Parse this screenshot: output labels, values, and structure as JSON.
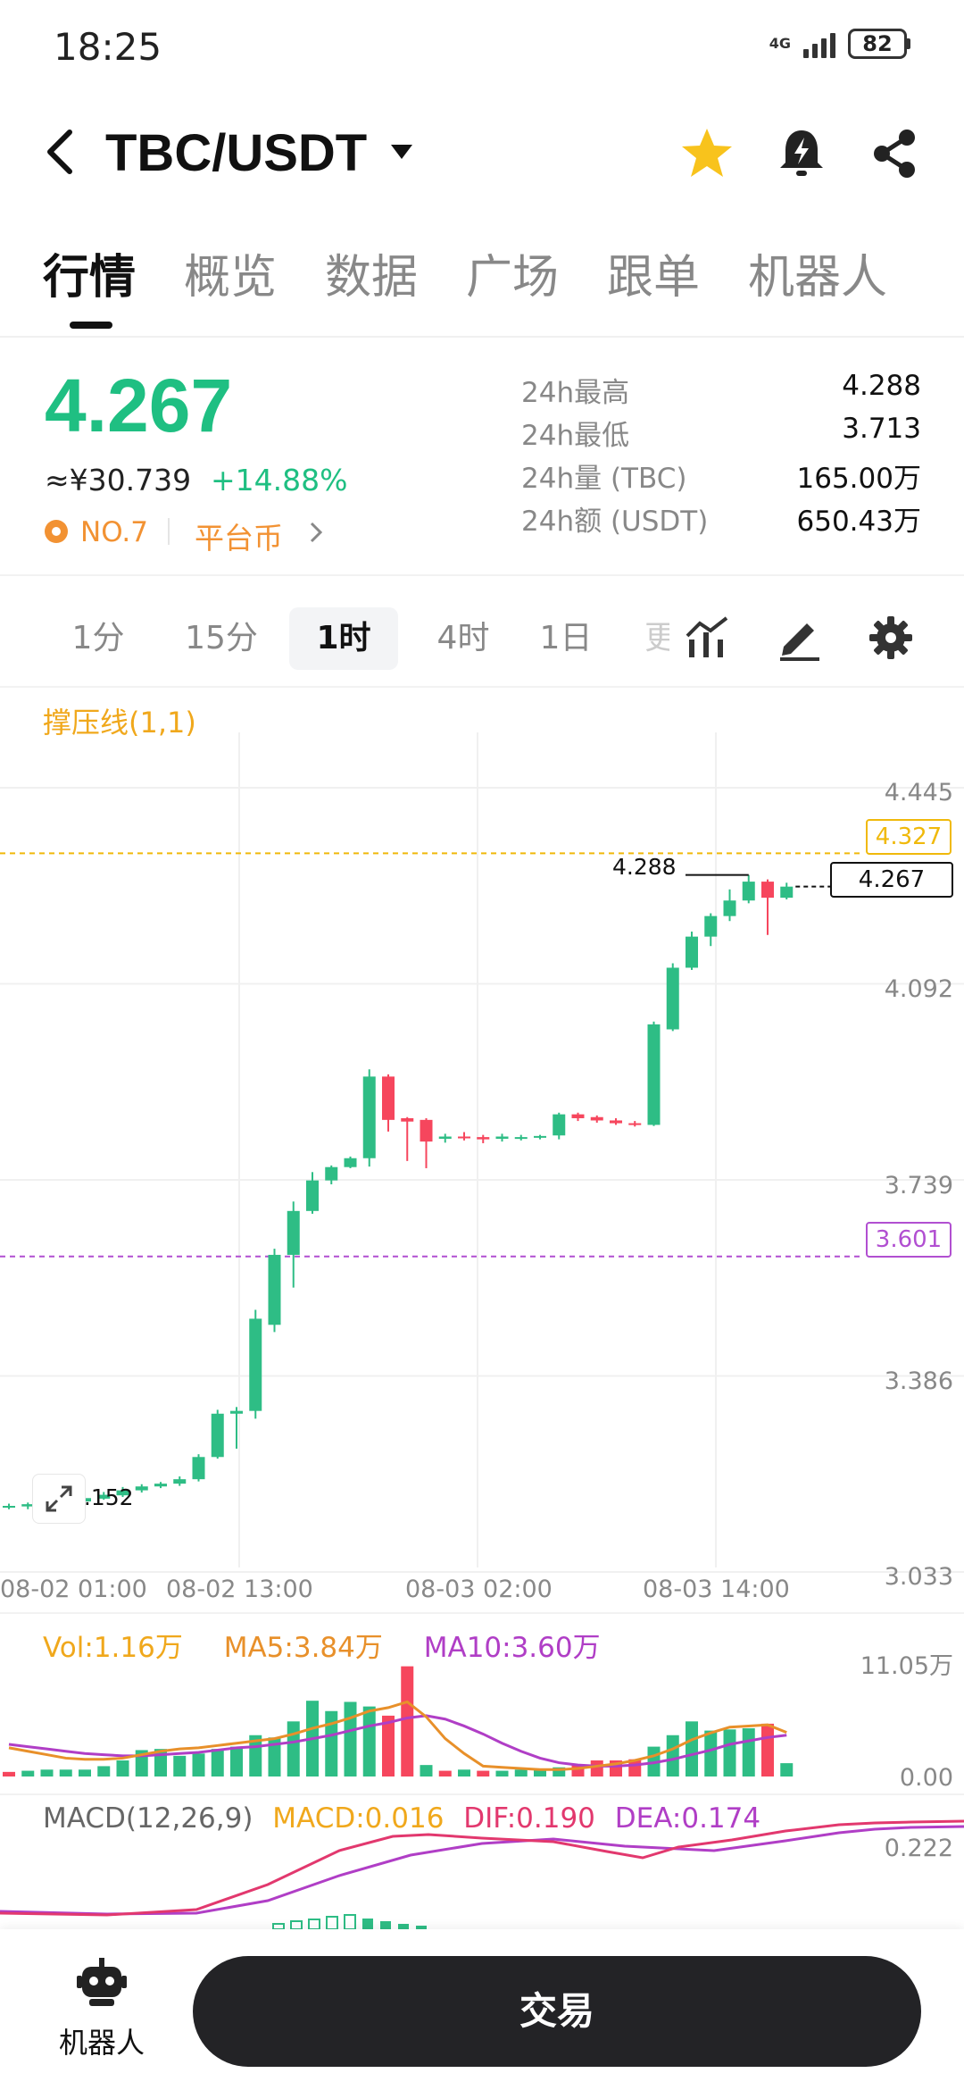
{
  "status_bar": {
    "time": "18:25",
    "network": "4G",
    "battery": "82"
  },
  "header": {
    "pair": "TBC/USDT"
  },
  "tabs": [
    "行情",
    "概览",
    "数据",
    "广场",
    "跟单",
    "机器人"
  ],
  "ticker": {
    "last_price": "4.267",
    "cny_price": "≈¥30.739",
    "change_pct": "+14.88%",
    "rank": "NO.7",
    "category": "平台币",
    "stats": [
      {
        "label": "24h最高",
        "value": "4.288"
      },
      {
        "label": "24h最低",
        "value": "3.713"
      },
      {
        "label": "24h量 (TBC)",
        "value": "165.00万"
      },
      {
        "label": "24h额 (USDT)",
        "value": "650.43万"
      }
    ]
  },
  "intervals": [
    "1分",
    "15分",
    "1时",
    "4时",
    "1日",
    "更"
  ],
  "active_interval": "1时",
  "chart": {
    "indicator_label": "撑压线(1,1)",
    "price_axis": [
      "4.445",
      "4.092",
      "3.739",
      "3.386",
      "3.033"
    ],
    "resistance": "4.327",
    "support": "3.601",
    "current_price_tag": "4.267",
    "high_marker": "4.288",
    "low_marker": "3.152",
    "time_axis": [
      "08-02 01:00",
      "08-02 13:00",
      "08-03 02:00",
      "08-03 14:00"
    ],
    "colors": {
      "up": "#2ebd85",
      "down": "#f6465d",
      "resistance": "#f0b90b",
      "support": "#b14fd1"
    }
  },
  "volume_panel": {
    "vol_label": "Vol:1.16万",
    "ma5_label": "MA5:3.84万",
    "ma10_label": "MA10:3.60万",
    "axis_top": "11.05万",
    "axis_bottom": "0.00",
    "colors": {
      "vol": "#f0a81c",
      "ma5": "#e8902a",
      "ma10": "#b03ec6"
    }
  },
  "macd_panel": {
    "title": "MACD(12,26,9)",
    "macd_label": "MACD:0.016",
    "dif_label": "DIF:0.190",
    "dea_label": "DEA:0.174",
    "axis_top": "0.222"
  },
  "bottom": {
    "robot_label": "机器人",
    "trade_label": "交易"
  },
  "chart_data": {
    "type": "candlestick",
    "interval": "1h",
    "y_axis_ticks": [
      4.445,
      4.092,
      3.739,
      3.386,
      3.033
    ],
    "x_axis_ticks": [
      "08-02 01:00",
      "08-02 13:00",
      "08-03 02:00",
      "08-03 14:00"
    ],
    "candles": [
      {
        "o": 3.15,
        "h": 3.156,
        "l": 3.146,
        "c": 3.152
      },
      {
        "o": 3.151,
        "h": 3.158,
        "l": 3.146,
        "c": 3.155
      },
      {
        "o": 3.154,
        "h": 3.16,
        "l": 3.15,
        "c": 3.157
      },
      {
        "o": 3.157,
        "h": 3.165,
        "l": 3.153,
        "c": 3.161
      },
      {
        "o": 3.16,
        "h": 3.17,
        "l": 3.157,
        "c": 3.166
      },
      {
        "o": 3.165,
        "h": 3.177,
        "l": 3.163,
        "c": 3.172
      },
      {
        "o": 3.171,
        "h": 3.186,
        "l": 3.168,
        "c": 3.18
      },
      {
        "o": 3.18,
        "h": 3.191,
        "l": 3.176,
        "c": 3.187
      },
      {
        "o": 3.187,
        "h": 3.195,
        "l": 3.184,
        "c": 3.192
      },
      {
        "o": 3.192,
        "h": 3.205,
        "l": 3.188,
        "c": 3.2
      },
      {
        "o": 3.2,
        "h": 3.245,
        "l": 3.196,
        "c": 3.24
      },
      {
        "o": 3.24,
        "h": 3.325,
        "l": 3.237,
        "c": 3.318
      },
      {
        "o": 3.318,
        "h": 3.33,
        "l": 3.255,
        "c": 3.323
      },
      {
        "o": 3.323,
        "h": 3.505,
        "l": 3.309,
        "c": 3.489
      },
      {
        "o": 3.478,
        "h": 3.615,
        "l": 3.465,
        "c": 3.604
      },
      {
        "o": 3.604,
        "h": 3.7,
        "l": 3.545,
        "c": 3.683
      },
      {
        "o": 3.683,
        "h": 3.753,
        "l": 3.678,
        "c": 3.738
      },
      {
        "o": 3.738,
        "h": 3.765,
        "l": 3.731,
        "c": 3.762
      },
      {
        "o": 3.762,
        "h": 3.781,
        "l": 3.76,
        "c": 3.778
      },
      {
        "o": 3.778,
        "h": 3.938,
        "l": 3.763,
        "c": 3.925
      },
      {
        "o": 3.925,
        "h": 3.929,
        "l": 3.826,
        "c": 3.847
      },
      {
        "o": 3.85,
        "h": 3.852,
        "l": 3.773,
        "c": 3.844
      },
      {
        "o": 3.847,
        "h": 3.85,
        "l": 3.76,
        "c": 3.808
      },
      {
        "o": 3.813,
        "h": 3.822,
        "l": 3.806,
        "c": 3.817
      },
      {
        "o": 3.817,
        "h": 3.825,
        "l": 3.81,
        "c": 3.815
      },
      {
        "o": 3.816,
        "h": 3.82,
        "l": 3.805,
        "c": 3.812
      },
      {
        "o": 3.813,
        "h": 3.822,
        "l": 3.808,
        "c": 3.817
      },
      {
        "o": 3.815,
        "h": 3.82,
        "l": 3.81,
        "c": 3.816
      },
      {
        "o": 3.816,
        "h": 3.82,
        "l": 3.812,
        "c": 3.818
      },
      {
        "o": 3.819,
        "h": 3.86,
        "l": 3.812,
        "c": 3.857
      },
      {
        "o": 3.857,
        "h": 3.86,
        "l": 3.845,
        "c": 3.85
      },
      {
        "o": 3.852,
        "h": 3.855,
        "l": 3.842,
        "c": 3.846
      },
      {
        "o": 3.846,
        "h": 3.85,
        "l": 3.838,
        "c": 3.841
      },
      {
        "o": 3.841,
        "h": 3.845,
        "l": 3.835,
        "c": 3.838
      },
      {
        "o": 3.838,
        "h": 4.024,
        "l": 3.836,
        "c": 4.019
      },
      {
        "o": 4.01,
        "h": 4.129,
        "l": 4.007,
        "c": 4.121
      },
      {
        "o": 4.121,
        "h": 4.186,
        "l": 4.117,
        "c": 4.177
      },
      {
        "o": 4.177,
        "h": 4.219,
        "l": 4.16,
        "c": 4.214
      },
      {
        "o": 4.214,
        "h": 4.262,
        "l": 4.205,
        "c": 4.242
      },
      {
        "o": 4.242,
        "h": 4.288,
        "l": 4.237,
        "c": 4.276
      },
      {
        "o": 4.276,
        "h": 4.28,
        "l": 4.18,
        "c": 4.247
      },
      {
        "o": 4.247,
        "h": 4.274,
        "l": 4.244,
        "c": 4.267
      }
    ],
    "volume": [
      0.4,
      0.5,
      0.6,
      0.6,
      0.6,
      0.9,
      1.4,
      2.3,
      2.4,
      1.8,
      2.0,
      2.4,
      2.6,
      3.6,
      3.4,
      4.8,
      6.6,
      5.7,
      6.5,
      6.1,
      5.3,
      9.6,
      1.0,
      0.5,
      0.6,
      0.5,
      0.5,
      0.6,
      0.6,
      0.8,
      1.0,
      1.4,
      1.4,
      1.5,
      2.6,
      3.6,
      4.8,
      4.0,
      4.1,
      4.2,
      4.6,
      1.16
    ],
    "volume_colors": [
      "down",
      "up",
      "up",
      "up",
      "up",
      "up",
      "up",
      "up",
      "up",
      "up",
      "up",
      "up",
      "up",
      "up",
      "up",
      "up",
      "up",
      "up",
      "up",
      "up",
      "down",
      "down",
      "up",
      "down",
      "up",
      "down",
      "up",
      "up",
      "up",
      "up",
      "down",
      "down",
      "down",
      "down",
      "up",
      "up",
      "up",
      "up",
      "up",
      "up",
      "down",
      "up"
    ],
    "ma5": [
      2.5,
      2.2,
      1.9,
      1.6,
      1.5,
      1.5,
      1.6,
      1.9,
      2.2,
      2.4,
      2.5,
      2.7,
      2.9,
      3.1,
      3.3,
      3.7,
      4.2,
      4.6,
      5.1,
      5.7,
      6.0,
      6.5,
      5.2,
      3.3,
      2.0,
      0.9,
      0.8,
      0.7,
      0.6,
      0.6,
      0.7,
      0.9,
      1.1,
      1.4,
      1.8,
      2.4,
      3.2,
      3.8,
      4.3,
      4.4,
      4.5,
      3.84
    ],
    "ma10": [
      2.8,
      2.6,
      2.4,
      2.2,
      2.0,
      1.9,
      1.8,
      1.8,
      1.9,
      2.0,
      2.1,
      2.3,
      2.5,
      2.6,
      2.8,
      3.0,
      3.3,
      3.6,
      4.0,
      4.4,
      4.7,
      5.1,
      5.3,
      5.0,
      4.4,
      3.7,
      2.9,
      2.2,
      1.6,
      1.2,
      1.0,
      0.9,
      0.9,
      1.0,
      1.2,
      1.5,
      1.9,
      2.3,
      2.8,
      3.1,
      3.4,
      3.6
    ]
  }
}
